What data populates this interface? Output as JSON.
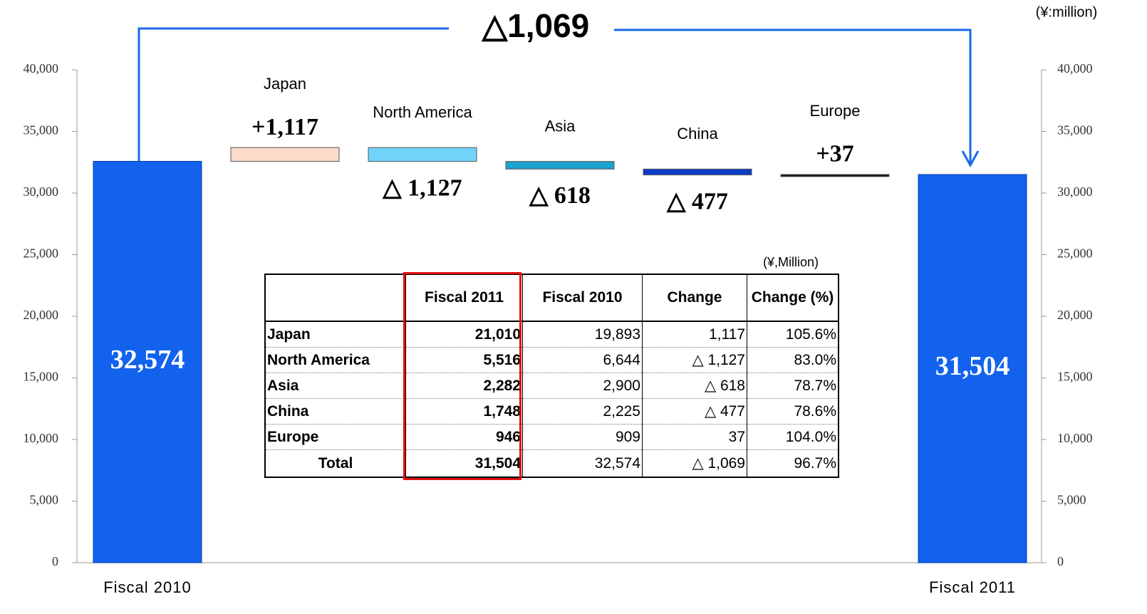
{
  "chart_data": {
    "type": "waterfall",
    "annotation": "△1,069",
    "unit": "(¥:million)",
    "categories": [
      "Fiscal 2010",
      "Japan",
      "North America",
      "Asia",
      "China",
      "Europe",
      "Fiscal 2011"
    ],
    "values": [
      32574,
      1117,
      -1127,
      -618,
      -477,
      37,
      31504
    ],
    "value_labels": [
      "32,574",
      "+1,117",
      "△ 1,127",
      "△ 618",
      "△ 477",
      "+37",
      "31,504"
    ],
    "colors": [
      "#1262ee",
      "#fbdccb",
      "#72d4fa",
      "#1ca2cf",
      "#0c3cc8",
      "#111111",
      "#1262ee"
    ],
    "ylim": [
      0,
      40000
    ],
    "yticks": [
      0,
      {
        "value": 5000,
        "label": "5,000"
      },
      {
        "value": 10000,
        "label": "10,000"
      },
      {
        "value": 15000,
        "label": "15,000"
      },
      {
        "value": 20000,
        "label": "20,000"
      },
      {
        "value": 25000,
        "label": "25,000"
      },
      {
        "value": 30000,
        "label": "30,000"
      },
      {
        "value": 35000,
        "label": "35,000"
      },
      {
        "value": 40000,
        "label": "40,000"
      }
    ],
    "y2lim": [
      0,
      40000
    ],
    "y2ticks": [
      0,
      {
        "value": 5000,
        "label": "5,000"
      },
      {
        "value": 10000,
        "label": "10,000"
      },
      {
        "value": 15000,
        "label": "15,000"
      },
      {
        "value": 20000,
        "label": "20,000"
      },
      {
        "value": 25000,
        "label": "25,000"
      },
      {
        "value": 30000,
        "label": "30,000"
      },
      {
        "value": 35000,
        "label": "35,000"
      },
      {
        "value": 40000,
        "label": "40,000"
      }
    ]
  },
  "table": {
    "unit": "(¥,Million)",
    "columns": [
      "Fiscal  2011",
      "Fiscal 2010",
      "Change",
      "Change (%)"
    ],
    "rows": [
      [
        "Japan",
        "21,010",
        "19,893",
        "1,117",
        "105.6%"
      ],
      [
        "North  America",
        "5,516",
        "6,644",
        "△ 1,127",
        "83.0%"
      ],
      [
        "Asia",
        "2,282",
        "2,900",
        "△ 618",
        "78.7%"
      ],
      [
        "China",
        "1,748",
        "2,225",
        "△ 477",
        "78.6%"
      ],
      [
        "Europe",
        "946",
        "909",
        "37",
        "104.0%"
      ],
      [
        "Total",
        "31,504",
        "32,574",
        "△ 1,069",
        "96.7%"
      ]
    ]
  }
}
